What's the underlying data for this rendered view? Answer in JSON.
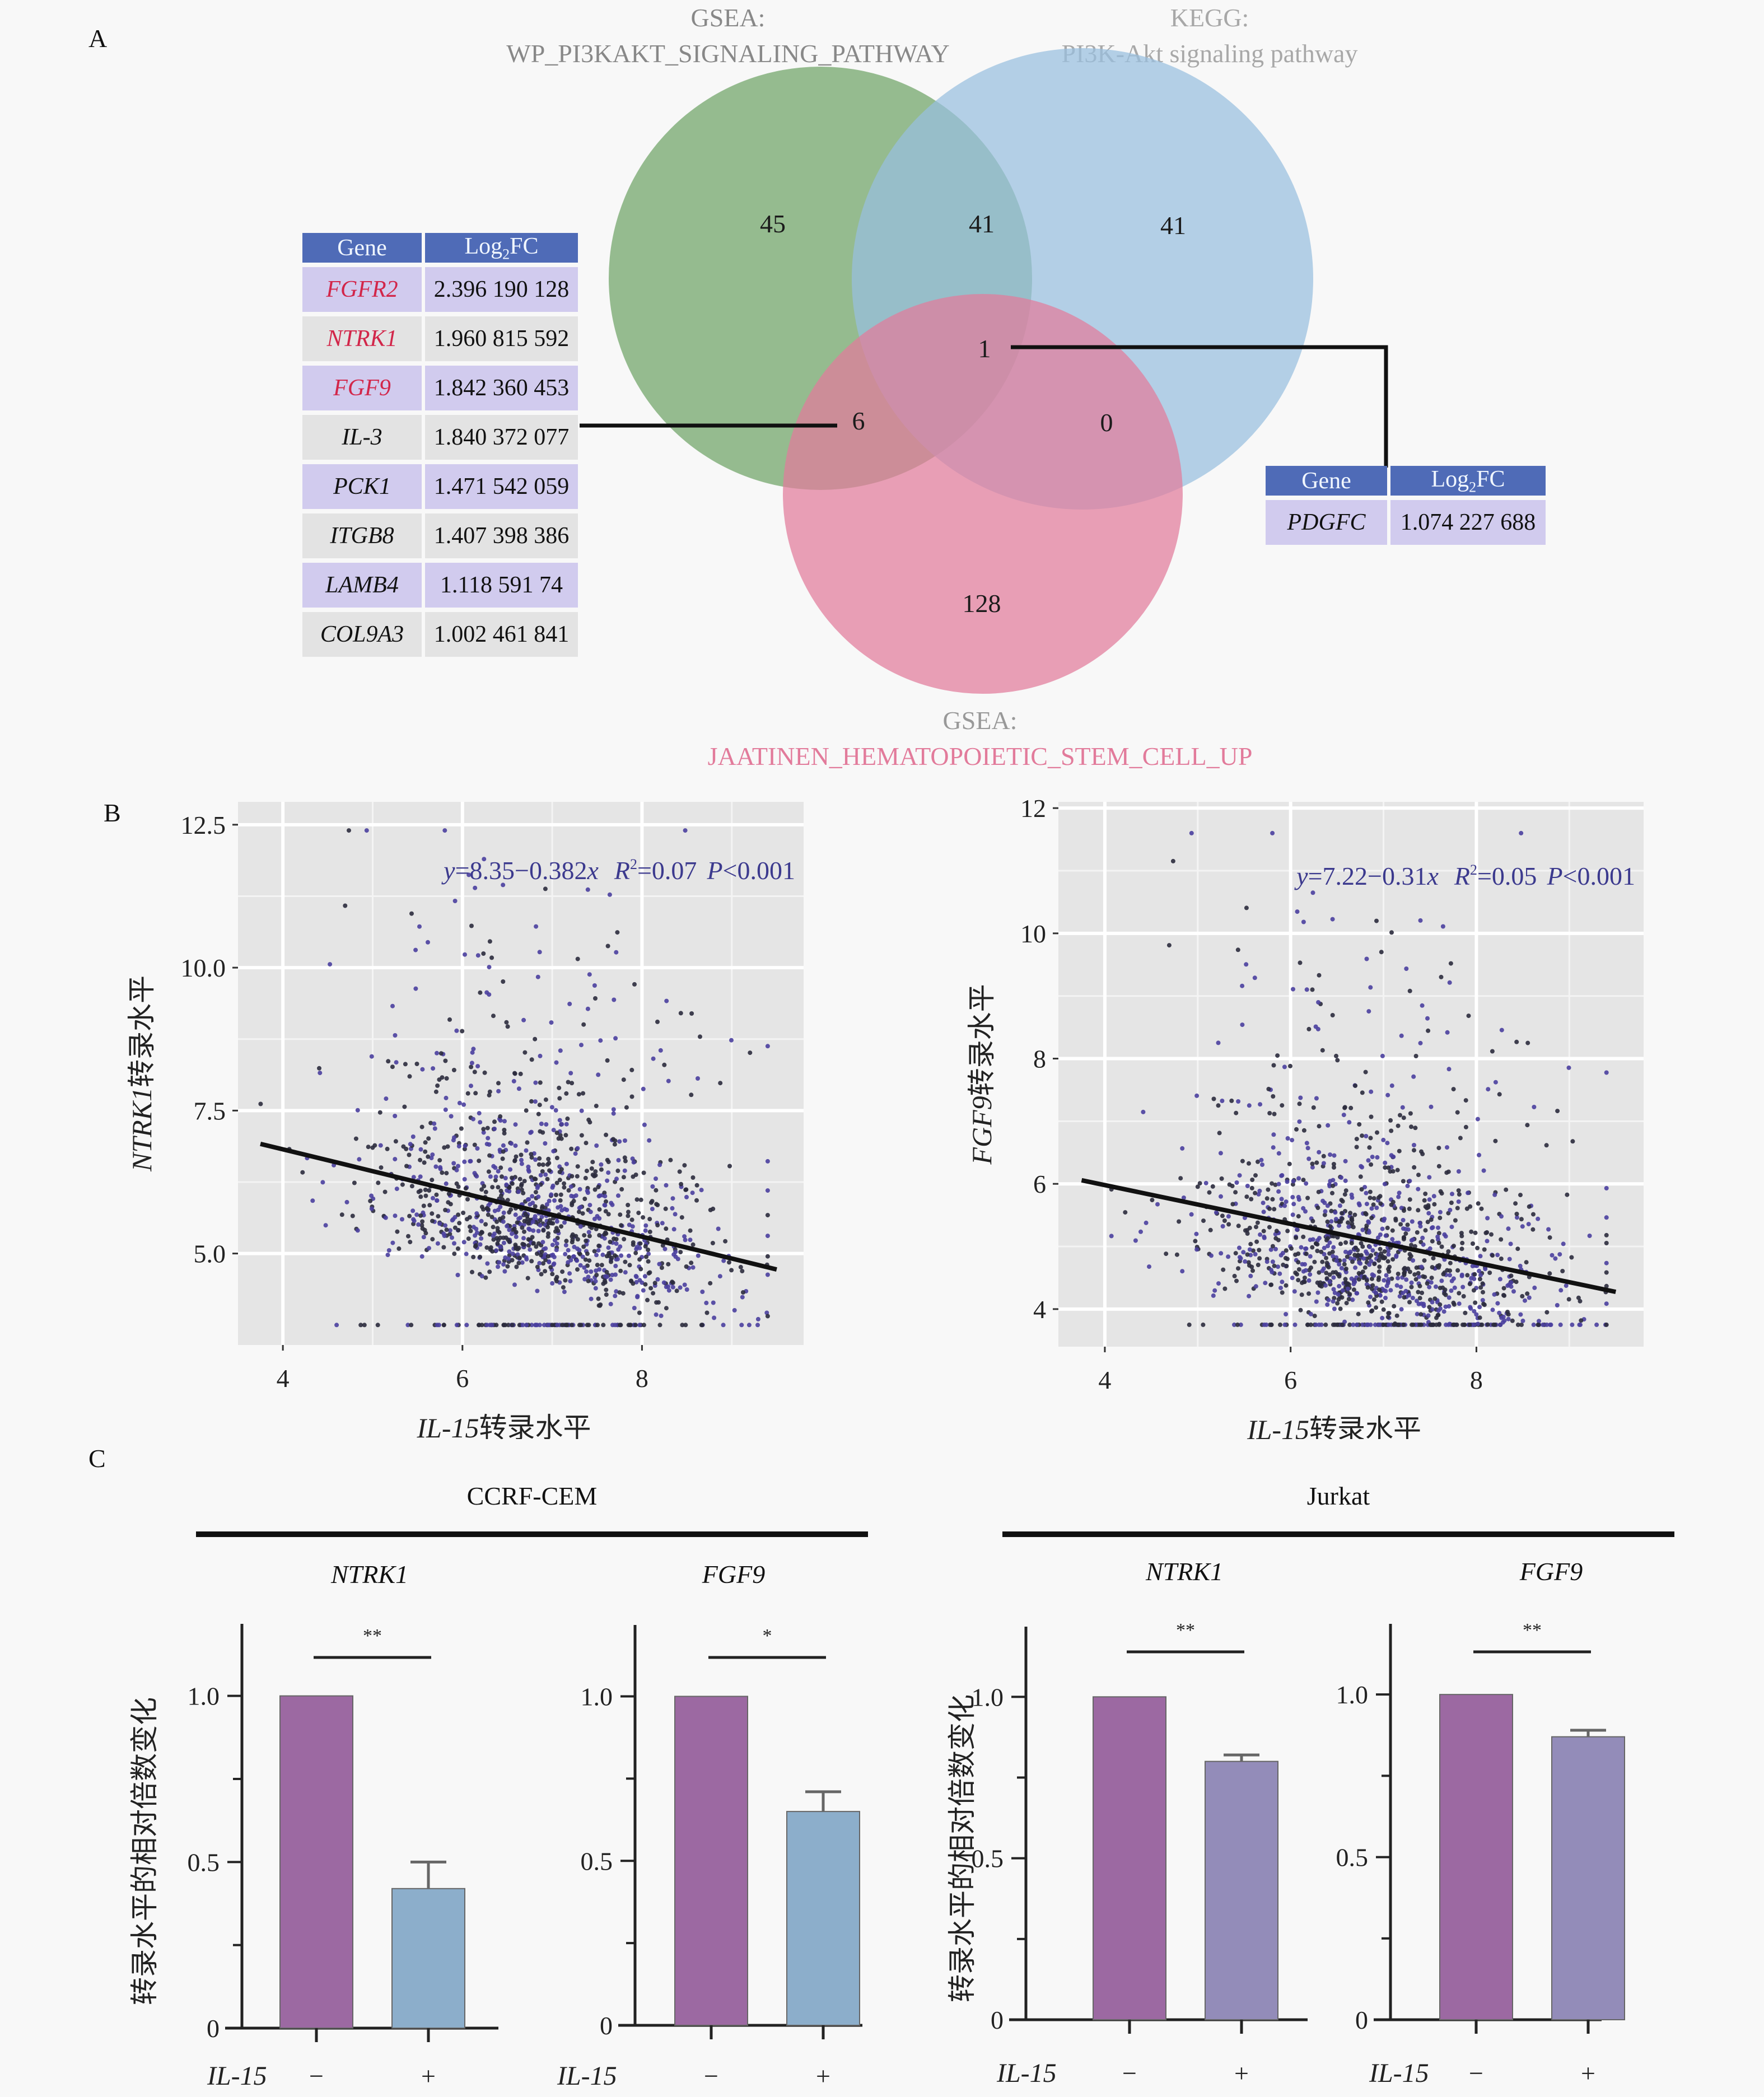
{
  "panels": {
    "a": "A",
    "b": "B",
    "c": "C"
  },
  "venn": {
    "sets": [
      {
        "name": "GSEA:",
        "subtitle": "WP_PI3KAKT_SIGNALING_PATHWAY",
        "color": "#6fa466"
      },
      {
        "name": "KEGG:",
        "subtitle": "PI3K-Akt signaling pathway",
        "color": "#99bfdf"
      },
      {
        "name": "GSEA:",
        "subtitle": "JAATINEN_HEMATOPOIETIC_STEM_CELL_UP",
        "color": "#e27b9b"
      }
    ],
    "regions": {
      "green_only": "45",
      "green_blue": "41",
      "blue_only": "41",
      "all_three": "1",
      "green_pink": "6",
      "blue_pink": "0",
      "pink_only": "128"
    }
  },
  "left_table": {
    "headers": {
      "gene": "Gene",
      "logfc_main": "Log",
      "logfc_sub": "2",
      "logfc_tail": "FC"
    },
    "rows": [
      {
        "gene": "FGFR2",
        "value": "2.396 190 128",
        "highlight": true
      },
      {
        "gene": "NTRK1",
        "value": "1.960 815 592",
        "highlight": true
      },
      {
        "gene": "FGF9",
        "value": "1.842 360 453",
        "highlight": true
      },
      {
        "gene": "IL-3",
        "value": "1.840 372 077",
        "highlight": false
      },
      {
        "gene": "PCK1",
        "value": "1.471 542 059",
        "highlight": false
      },
      {
        "gene": "ITGB8",
        "value": "1.407 398 386",
        "highlight": false
      },
      {
        "gene": "LAMB4",
        "value": "1.118 591 74",
        "highlight": false
      },
      {
        "gene": "COL9A3",
        "value": "1.002 461 841",
        "highlight": false
      }
    ]
  },
  "right_table": {
    "headers": {
      "gene": "Gene",
      "logfc_main": "Log",
      "logfc_sub": "2",
      "logfc_tail": "FC"
    },
    "rows": [
      {
        "gene": "PDGFC",
        "value": "1.074 227 688"
      }
    ]
  },
  "chart_data": [
    {
      "type": "scatter",
      "title": "",
      "equation": {
        "y": "y",
        "body": "=8.35−0.382",
        "x": "x",
        "r": "R",
        "r_sup": "2",
        "r_val": "=0.07",
        "p": "P",
        "p_val": "<0.001"
      },
      "xlabel_italic": "IL-15",
      "xlabel_rest": "转录水平",
      "ylabel_italic": "NTRK1",
      "ylabel_rest": "转录水平",
      "xlim": [
        3.5,
        9.8
      ],
      "ylim": [
        3.4,
        12.9
      ],
      "xticks": [
        "4",
        "6",
        "8"
      ],
      "yticks": [
        "5.0",
        "7.5",
        "10.0",
        "12.5"
      ],
      "fit": {
        "intercept": 8.35,
        "slope": -0.382,
        "x_range": [
          3.75,
          9.5
        ]
      },
      "grid": true,
      "point_colors": [
        "#2b2b3d",
        "#4a3f9e"
      ]
    },
    {
      "type": "scatter",
      "title": "",
      "equation": {
        "y": "y",
        "body": "=7.22−0.31",
        "x": "x",
        "r": "R",
        "r_sup": "2",
        "r_val": "=0.05",
        "p": "P",
        "p_val": "<0.001"
      },
      "xlabel_italic": "IL-15",
      "xlabel_rest": "转录水平",
      "ylabel_italic": "FGF9",
      "ylabel_rest": "转录水平",
      "xlim": [
        3.5,
        9.8
      ],
      "ylim": [
        3.4,
        12.1
      ],
      "xticks": [
        "4",
        "6",
        "8"
      ],
      "yticks": [
        "4",
        "6",
        "8",
        "10",
        "12"
      ],
      "fit": {
        "intercept": 7.22,
        "slope": -0.31,
        "x_range": [
          3.75,
          9.5
        ]
      },
      "grid": true,
      "point_colors": [
        "#2b2b3d",
        "#4a3f9e"
      ]
    },
    {
      "type": "bar",
      "group": "CCRF-CEM",
      "title": "NTRK1",
      "categories": [
        "−",
        "+"
      ],
      "values": [
        1.0,
        0.42
      ],
      "error_upper": [
        null,
        0.5
      ],
      "colors": [
        "#9c69a2",
        "#8caecb"
      ],
      "significance": "**",
      "ylabel": "转录水平的相对倍数变化",
      "xlabel_italic": "IL-15",
      "ylim": [
        0,
        1.2
      ],
      "yticks": [
        "0",
        "0.5",
        "1.0"
      ]
    },
    {
      "type": "bar",
      "group": "CCRF-CEM",
      "title": "FGF9",
      "categories": [
        "−",
        "+"
      ],
      "values": [
        1.0,
        0.65
      ],
      "error_upper": [
        null,
        0.71
      ],
      "colors": [
        "#9c69a2",
        "#8caecb"
      ],
      "significance": "*",
      "ylabel": "",
      "xlabel_italic": "IL-15",
      "ylim": [
        0,
        1.2
      ],
      "yticks": [
        "0",
        "0.5",
        "1.0"
      ]
    },
    {
      "type": "bar",
      "group": "Jurkat",
      "title": "NTRK1",
      "categories": [
        "−",
        "+"
      ],
      "values": [
        1.0,
        0.8
      ],
      "error_upper": [
        null,
        0.82
      ],
      "colors": [
        "#9c69a2",
        "#938cb9"
      ],
      "significance": "**",
      "ylabel": "转录水平的相对倍数变化",
      "xlabel_italic": "IL-15",
      "ylim": [
        0,
        1.2
      ],
      "yticks": [
        "0",
        "0.5",
        "1.0"
      ]
    },
    {
      "type": "bar",
      "group": "Jurkat",
      "title": "FGF9",
      "categories": [
        "−",
        "+"
      ],
      "values": [
        1.0,
        0.87
      ],
      "error_upper": [
        null,
        0.89
      ],
      "colors": [
        "#9c69a2",
        "#938cb9"
      ],
      "significance": "**",
      "ylabel": "",
      "xlabel_italic": "IL-15",
      "ylim": [
        0,
        1.2
      ],
      "yticks": [
        "0",
        "0.5",
        "1.0"
      ]
    }
  ],
  "groups": {
    "left": "CCRF-CEM",
    "right": "Jurkat"
  }
}
